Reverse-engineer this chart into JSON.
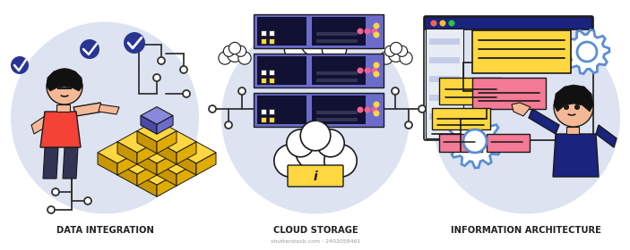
{
  "bg_color": "#ffffff",
  "title1": "DATA INTEGRATION",
  "title2": "CLOUD STORAGE",
  "title3": "INFORMATION ARCHITECTURE",
  "title_fontsize": 7.2,
  "title_color": "#222222",
  "watermark": "shutterstock.com · 2402058461",
  "colors": {
    "yellow": "#f5c000",
    "yellow_top": "#ffd740",
    "yellow_dark": "#c89600",
    "yellow_side": "#e0ac00",
    "blue_cube": "#6b6bcc",
    "blue_cube_dark": "#4a4aaa",
    "blue_cube_light": "#8888dd",
    "pink": "#f06292",
    "pink_red": "#e05070",
    "orange": "#ff9800",
    "yellow_dot": "#ffd740",
    "skin": "#f5b896",
    "skin_dark": "#e09070",
    "red_shirt": "#f44336",
    "dark_blue_shirt": "#1e3a8a",
    "outline": "#1a1a1a",
    "panel_oval": "#dde3f0",
    "gear_blue": "#5b8ed4",
    "pink_box": "#f47a96",
    "yellow_box": "#ffd740",
    "screen_bg": "#dde3f2",
    "screen_panel": "#c5cce8",
    "server_blue": "#6b6bcc",
    "server_dark": "#111133",
    "cloud_white": "#ffffff",
    "circuit_line": "#333333",
    "hair_dark": "#111111",
    "dark_navy": "#1a237e",
    "check_blue": "#283593"
  }
}
